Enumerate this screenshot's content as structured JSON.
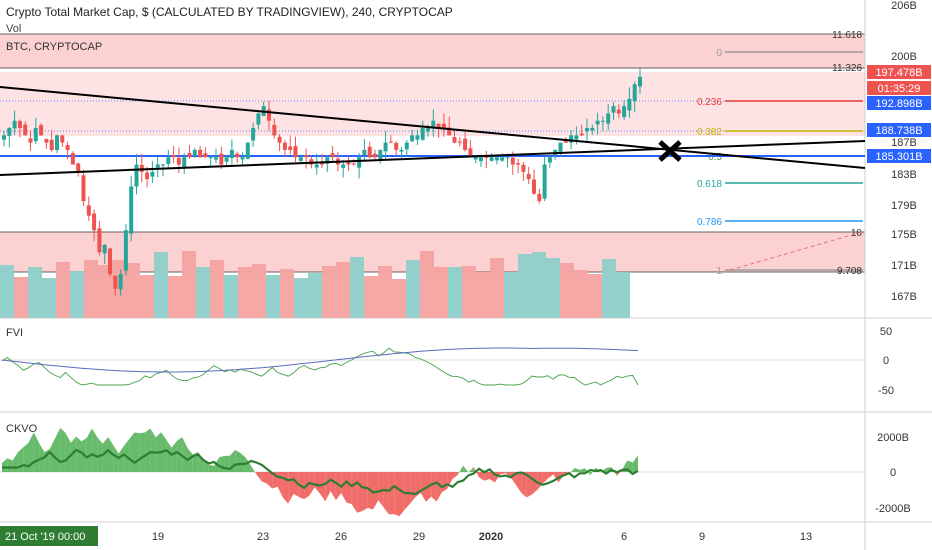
{
  "header": {
    "title": "Crypto Total Market Cap, $ (CALCULATED BY TRADINGVIEW), 240, CRYPTOCAP",
    "vol_label": "Vol",
    "overlay_label": "BTC, CRYPTOCAP"
  },
  "indicators": {
    "fvi_label": "FVI",
    "ckvo_label": "CKVO"
  },
  "price_axis": {
    "ticks": [
      "206B",
      "200B",
      "187B",
      "183B",
      "179B",
      "175B",
      "171B",
      "167B"
    ],
    "badges": [
      {
        "text": "197.478B",
        "color": "#ef5350"
      },
      {
        "text": "01:35:29",
        "color": "#ef5350"
      },
      {
        "text": "192.898B",
        "color": "#2962ff"
      },
      {
        "text": "188.738B",
        "color": "#2962ff"
      },
      {
        "text": "185.301B",
        "color": "#2962ff"
      }
    ]
  },
  "fvi_axis": {
    "ticks": [
      "50",
      "0",
      "-50"
    ]
  },
  "ckvo_axis": {
    "ticks": [
      "2000B",
      "0",
      "-2000B"
    ]
  },
  "time_axis": {
    "current_label": "21 Oct '19   00:00",
    "ticks": [
      "19",
      "23",
      "26",
      "29",
      "2020",
      "6",
      "9",
      "13"
    ]
  },
  "fib_levels": [
    {
      "label": "0",
      "color": "#9e9e9e"
    },
    {
      "label": "0.236",
      "color": "#e53935"
    },
    {
      "label": "0.382",
      "color": "#c9b400"
    },
    {
      "label": "0.5",
      "color": "#43a047"
    },
    {
      "label": "0.618",
      "color": "#26a69a"
    },
    {
      "label": "0.786",
      "color": "#2196f3"
    },
    {
      "label": "1",
      "color": "#9e9e9e"
    }
  ],
  "box_labels": {
    "top": "11.618",
    "second": "11.326",
    "lower_top": "10",
    "lower_bottom": "9.708"
  },
  "colors": {
    "up": "#26a69a",
    "down": "#ef5350",
    "vol_up": "#8fcfc9",
    "vol_down": "#f4a3a1",
    "fvi_line": "#43a047",
    "fvi_signal": "#5c6bc0",
    "ckvo_pos": "#4caf50",
    "ckvo_neg": "#ef5350",
    "ckvo_signal": "#2e7d32",
    "zone_fill": "#fbd1d1",
    "blue_line": "#2962ff"
  },
  "chart_data": {
    "type": "candlestick",
    "title": "Crypto Total Market Cap, $ (CALCULATED BY TRADINGVIEW), 240, CRYPTOCAP",
    "x_ticks": [
      "19",
      "23",
      "26",
      "29",
      "2020",
      "6",
      "9",
      "13"
    ],
    "y_ticks": [
      "206B",
      "200B",
      "187B",
      "183B",
      "179B",
      "175B",
      "171B",
      "167B"
    ],
    "last_price": "197.478B",
    "price_levels": [
      "192.898B",
      "188.738B",
      "185.301B"
    ],
    "fib_levels": [
      "0",
      "0.236",
      "0.382",
      "0.5",
      "0.618",
      "0.786",
      "1"
    ],
    "close_series": [
      189,
      190,
      191,
      190,
      189,
      188,
      190,
      189,
      188,
      187,
      189,
      188,
      187,
      185,
      184,
      180,
      178,
      176,
      173,
      174,
      170,
      168,
      170,
      176,
      182,
      185,
      184,
      183,
      184,
      185,
      185,
      186,
      186,
      185,
      186,
      186,
      187,
      186,
      186,
      186,
      186,
      185,
      186,
      187,
      186,
      186,
      188,
      190,
      192,
      193,
      191,
      189,
      188,
      187,
      187,
      186,
      186,
      186,
      185,
      185,
      185,
      186,
      186,
      185,
      185,
      185,
      185,
      186,
      187,
      186,
      186,
      187,
      188,
      188,
      187,
      187,
      188,
      189,
      189,
      190,
      190,
      191,
      190,
      190,
      189,
      188,
      188,
      187,
      186,
      186,
      186,
      186,
      186,
      186,
      186,
      186,
      185,
      185,
      184,
      183,
      181,
      180,
      185,
      186,
      187,
      188,
      188,
      189,
      189,
      189,
      190,
      190,
      191,
      191,
      192,
      193,
      192,
      193,
      194,
      196,
      197
    ]
  }
}
